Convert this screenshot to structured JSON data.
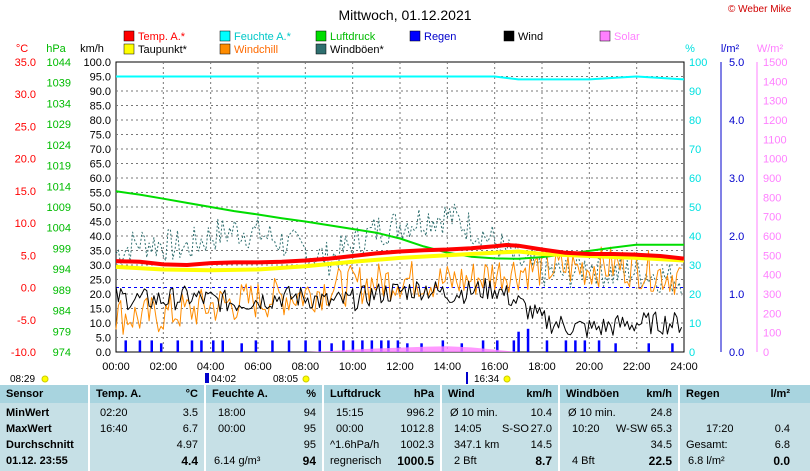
{
  "header": {
    "title": "Mittwoch, 01.12.2021",
    "copyright": "© Weber Mike"
  },
  "colors": {
    "temp": "#ff0000",
    "dewpoint": "#ffff00",
    "humidity": "#00ffff",
    "windchill": "#ff8c00",
    "pressure": "#00dd00",
    "gust": "#2f6f6f",
    "rain": "#0000ff",
    "wind": "#000000",
    "solar": "#ff80ff",
    "table_bg": "#c6e0e6",
    "table_head": "#a8d4df"
  },
  "legend": [
    {
      "label": "Temp. A.*",
      "color": "#ff0000"
    },
    {
      "label": "Taupunkt*",
      "color": "#ffff00"
    },
    {
      "label": "Feuchte A.*",
      "color": "#00ffff"
    },
    {
      "label": "Windchill",
      "color": "#ff8c00"
    },
    {
      "label": "Luftdruck",
      "color": "#00dd00"
    },
    {
      "label": "Windböen*",
      "color": "#2f6f6f"
    },
    {
      "label": "Regen",
      "color": "#0000ff"
    },
    {
      "label": "Wind",
      "color": "#000000"
    },
    {
      "label": "Solar",
      "color": "#ff80ff"
    }
  ],
  "chart_data": {
    "type": "line",
    "title": "Mittwoch, 01.12.2021",
    "grid": true,
    "x_unit": "h",
    "x_range": [
      0,
      24
    ],
    "x_ticks": [
      "00:00",
      "02:00",
      "04:00",
      "06:00",
      "08:00",
      "10:00",
      "12:00",
      "14:00",
      "16:00",
      "18:00",
      "20:00",
      "22:00",
      "24:00"
    ],
    "axes": [
      {
        "id": "temp",
        "label": "°C",
        "range": [
          -10,
          35
        ],
        "ticks": [
          "-10.0",
          "-5.0",
          "0.0",
          "5.0",
          "10.0",
          "15.0",
          "20.0",
          "25.0",
          "30.0",
          "35.0"
        ]
      },
      {
        "id": "hpa",
        "label": "hPa",
        "range": [
          974,
          1044
        ],
        "ticks": [
          "974",
          "979",
          "984",
          "989",
          "994",
          "999",
          "1004",
          "1009",
          "1014",
          "1019",
          "1024",
          "1029",
          "1034",
          "1039",
          "1044"
        ]
      },
      {
        "id": "kmh",
        "label": "km/h",
        "range": [
          0,
          100
        ],
        "ticks": [
          "0.0",
          "5.0",
          "10.0",
          "15.0",
          "20.0",
          "25.0",
          "30.0",
          "35.0",
          "40.0",
          "45.0",
          "50.0",
          "55.0",
          "60.0",
          "65.0",
          "70.0",
          "75.0",
          "80.0",
          "85.0",
          "90.0",
          "95.0",
          "100.0"
        ]
      },
      {
        "id": "pct",
        "label": "%",
        "range": [
          0,
          100
        ],
        "ticks": [
          "0",
          "10",
          "20",
          "30",
          "40",
          "50",
          "60",
          "70",
          "80",
          "90",
          "100"
        ]
      },
      {
        "id": "rain",
        "label": "l/m²",
        "range": [
          0,
          5
        ],
        "ticks": [
          "0.0",
          "1.0",
          "2.0",
          "3.0",
          "4.0",
          "5.0"
        ]
      },
      {
        "id": "solar",
        "label": "W/m²",
        "range": [
          0,
          1500
        ],
        "ticks": [
          "0",
          "100",
          "200",
          "300",
          "400",
          "500",
          "600",
          "700",
          "800",
          "900",
          "1000",
          "1100",
          "1200",
          "1300",
          "1400",
          "1500"
        ]
      }
    ],
    "series": [
      {
        "name": "Temp. A.*",
        "axis": "temp",
        "x": [
          0,
          1,
          2,
          3,
          4,
          5,
          6,
          7,
          8,
          9,
          10,
          11,
          12,
          13,
          14,
          15,
          16,
          16.5,
          17,
          18,
          19,
          20,
          21,
          22,
          23,
          24
        ],
        "y": [
          4.1,
          4.0,
          3.6,
          3.5,
          3.8,
          3.9,
          3.9,
          4.0,
          4.2,
          4.5,
          4.9,
          5.3,
          5.6,
          5.8,
          5.9,
          6.1,
          6.4,
          6.6,
          6.5,
          5.9,
          5.4,
          5.2,
          5.2,
          5.1,
          4.9,
          4.5
        ]
      },
      {
        "name": "Taupunkt*",
        "axis": "temp",
        "x": [
          0,
          2,
          4,
          6,
          8,
          10,
          12,
          14,
          16,
          17,
          18,
          20,
          22,
          24
        ],
        "y": [
          3.2,
          2.8,
          2.7,
          2.8,
          3.3,
          4.0,
          4.6,
          5.0,
          5.4,
          5.6,
          5.2,
          4.9,
          4.6,
          4.2
        ]
      },
      {
        "name": "Feuchte A.*",
        "axis": "pct",
        "x": [
          0,
          4,
          8,
          12,
          16,
          17,
          18,
          20,
          22,
          24
        ],
        "y": [
          95,
          95,
          95,
          95,
          95,
          94,
          94,
          94,
          95,
          94
        ]
      },
      {
        "name": "Luftdruck",
        "axis": "hpa",
        "x": [
          0,
          1,
          2,
          3,
          4,
          5,
          6,
          7,
          8,
          9,
          10,
          11,
          12,
          13,
          14,
          15,
          16,
          17,
          18,
          19,
          20,
          21,
          22,
          23,
          24
        ],
        "y": [
          1012.8,
          1012.0,
          1011.0,
          1010.0,
          1009.0,
          1008.0,
          1007.2,
          1006.3,
          1005.5,
          1004.6,
          1003.7,
          1002.8,
          1001.4,
          999.5,
          998.0,
          997.0,
          996.6,
          996.5,
          996.9,
          997.6,
          998.4,
          999.2,
          999.9,
          999.9,
          999.9
        ]
      },
      {
        "name": "Windchill",
        "axis": "kmh",
        "x": [
          0,
          1,
          2,
          3,
          4,
          5,
          6,
          7,
          8,
          9,
          10,
          11,
          12,
          13,
          14,
          15,
          16,
          17,
          18,
          19,
          20,
          21,
          22,
          23,
          24
        ],
        "y": [
          13,
          12,
          13,
          14,
          16,
          17,
          18,
          19,
          20,
          22,
          23,
          24,
          25,
          25,
          24,
          25,
          27,
          28,
          29,
          29,
          29,
          30,
          29,
          27,
          26
        ]
      },
      {
        "name": "Windböen*",
        "axis": "kmh",
        "x": [
          0,
          1,
          2,
          3,
          4,
          5,
          6,
          7,
          8,
          9,
          10,
          11,
          12,
          13,
          14,
          15,
          16,
          17,
          18,
          19,
          20,
          21,
          22,
          23,
          24
        ],
        "y": [
          34,
          38,
          37,
          36,
          40,
          42,
          41,
          38,
          35,
          32,
          37,
          42,
          44,
          46,
          47,
          43,
          38,
          31,
          28,
          27,
          30,
          27,
          28,
          26,
          25
        ]
      },
      {
        "name": "Wind",
        "axis": "kmh",
        "x": [
          0,
          1,
          2,
          3,
          4,
          5,
          6,
          7,
          8,
          9,
          10,
          11,
          12,
          13,
          14,
          15,
          16,
          17,
          18,
          19,
          20,
          21,
          22,
          23,
          24
        ],
        "y": [
          19,
          18,
          18,
          19,
          18,
          17,
          18,
          19,
          19,
          17,
          18,
          20,
          21,
          22,
          20,
          21,
          22,
          17,
          11,
          9,
          8,
          9,
          10,
          10,
          10
        ]
      },
      {
        "name": "Regen",
        "axis": "kmh",
        "type": "bar",
        "x": [
          0.4,
          1,
          1.5,
          1.9,
          2.6,
          3.2,
          3.6,
          4.1,
          4.5,
          5.3,
          5.9,
          6.6,
          7.3,
          8.0,
          8.6,
          9.1,
          9.6,
          10.0,
          10.4,
          10.8,
          11.2,
          11.5,
          11.9,
          12.3,
          12.9,
          13.8,
          14.6,
          15.5,
          16.1,
          16.8,
          17.0,
          17.4,
          18.2,
          19.0,
          19.4,
          19.8,
          20.4,
          21.1,
          22.5,
          23.5
        ],
        "y": [
          4,
          4,
          4,
          3,
          4,
          4,
          4,
          4,
          4,
          3,
          4,
          4,
          4,
          4,
          4,
          3,
          4,
          4,
          4,
          4,
          4,
          4,
          4,
          3,
          3,
          4,
          3,
          4,
          4,
          4,
          7,
          8,
          4,
          4,
          4,
          4,
          4,
          3,
          3,
          3
        ]
      },
      {
        "name": "Solar",
        "axis": "kmh",
        "type": "area",
        "x": [
          8,
          9,
          10,
          11,
          12,
          13,
          14,
          15,
          16,
          17
        ],
        "y": [
          0,
          0.3,
          0.8,
          1.2,
          1.5,
          1.8,
          2.0,
          1.6,
          0.8,
          0
        ]
      }
    ]
  },
  "footer_marks": {
    "sunrise": "08:29",
    "moonset": "04:02",
    "moonrise": "08:05",
    "sunset": "16:34"
  },
  "stats": {
    "sensor": {
      "h": "Sensor",
      "r1": "MinWert",
      "r2": "MaxWert",
      "r3": "Durchschnitt",
      "r4": "01.12. 23:55"
    },
    "temp": {
      "h": "Temp. A.",
      "u": "°C",
      "r1t": "02:20",
      "r1v": "3.5",
      "r2t": "16:40",
      "r2v": "6.7",
      "r3v": "4.97",
      "r4v": "4.4"
    },
    "hum": {
      "h": "Feuchte A.",
      "u": "%",
      "r1t": "18:00",
      "r1v": "94",
      "r2t": "00:00",
      "r2v": "95",
      "r3v": "95",
      "r4t": "6.14 g/m³",
      "r4v": "94"
    },
    "press": {
      "h": "Luftdruck",
      "u": "hPa",
      "r1t": "15:15",
      "r1v": "996.2",
      "r2t": "00:00",
      "r2v": "1012.8",
      "r3t": "^1.6hPa/h",
      "r3v": "1002.3",
      "r4t": "regnerisch",
      "r4v": "1000.5"
    },
    "wind": {
      "h": "Wind",
      "u": "km/h",
      "r1t": "Ø 10 min.",
      "r1v": "10.4",
      "r2t": "14:05",
      "r2d": "S-SO",
      "r2v": "27.0",
      "r3t": "347.1 km",
      "r3v": "14.5",
      "r4t": "2 Bft",
      "r4v": "8.7"
    },
    "gust": {
      "h": "Windböen",
      "u": "km/h",
      "r1t": "Ø 10 min.",
      "r1v": "24.8",
      "r2t": "10:20",
      "r2d": "W-SW",
      "r2v": "65.3",
      "r3v": "34.5",
      "r4t": "4 Bft",
      "r4v": "22.5"
    },
    "rain": {
      "h": "Regen",
      "u": "l/m²",
      "r2t": "17:20",
      "r2v": "0.4",
      "r3t": "Gesamt:",
      "r3v": "6.8",
      "r4t": "6.8 l/m²",
      "r4v": "0.0"
    }
  }
}
